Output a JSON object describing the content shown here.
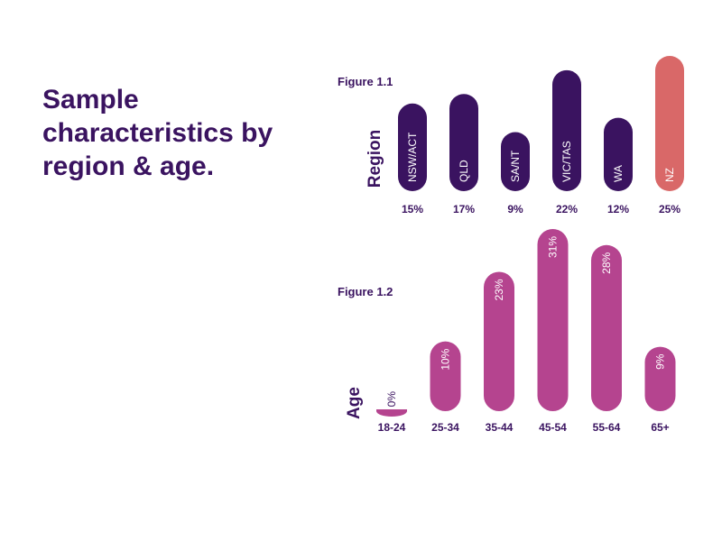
{
  "page": {
    "title": "Sample characteristics by region & age."
  },
  "chart_data": [
    {
      "type": "bar",
      "figure_label": "Figure 1.1",
      "axis_title": "Region",
      "categories": [
        "NSW/ACT",
        "QLD",
        "SA/NT",
        "VIC/TAS",
        "WA",
        "NZ"
      ],
      "values": [
        15,
        17,
        9,
        22,
        12,
        25
      ],
      "value_labels": [
        "15%",
        "17%",
        "9%",
        "22%",
        "12%",
        "25%"
      ],
      "colors": [
        "#3a1360",
        "#3a1360",
        "#3a1360",
        "#3a1360",
        "#3a1360",
        "#d96868"
      ],
      "ylim": [
        0,
        25
      ],
      "grid": false,
      "legend": "none"
    },
    {
      "type": "bar",
      "figure_label": "Figure 1.2",
      "axis_title": "Age",
      "categories": [
        "18-24",
        "25-34",
        "35-44",
        "45-54",
        "55-64",
        "65+"
      ],
      "values": [
        0,
        10,
        23,
        31,
        28,
        9
      ],
      "value_labels": [
        "0%",
        "10%",
        "23%",
        "31%",
        "28%",
        "9%"
      ],
      "colors": [
        "#b5448f",
        "#b5448f",
        "#b5448f",
        "#b5448f",
        "#b5448f",
        "#b5448f"
      ],
      "ylim": [
        0,
        31
      ],
      "grid": false,
      "legend": "none"
    }
  ]
}
